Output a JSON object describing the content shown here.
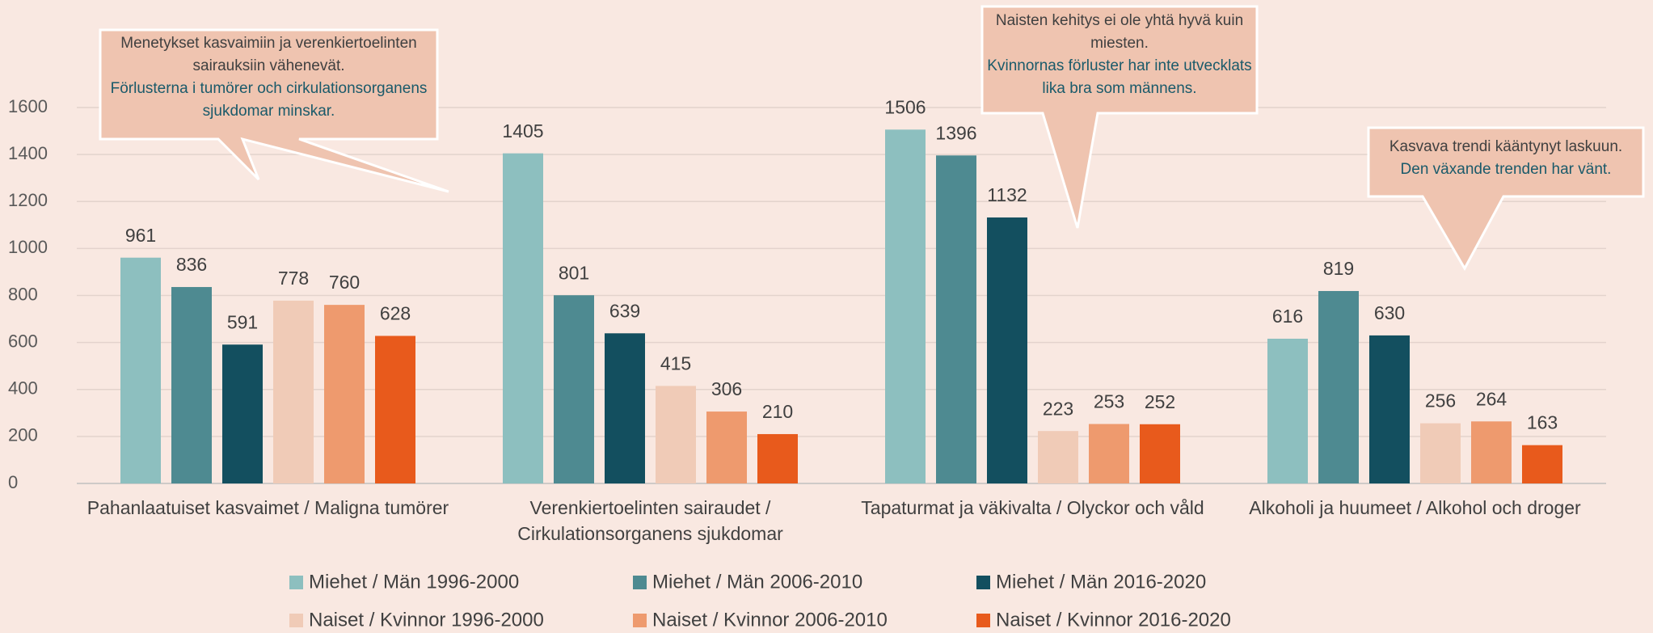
{
  "chart_data": {
    "type": "bar",
    "categories": [
      "Pahanlaatuiset kasvaimet / Maligna tumörer",
      "Verenkiertoelinten sairaudet / Cirkulationsorganens sjukdomar",
      "Tapaturmat ja väkivalta / Olyckor och våld",
      "Alkoholi ja huumeet / Alkohol och droger"
    ],
    "series": [
      {
        "name": "Miehet / Män 1996-2000",
        "color": "#8dbfbf",
        "values": [
          961,
          1405,
          1506,
          616
        ]
      },
      {
        "name": "Miehet / Män 2006-2010",
        "color": "#4e8a91",
        "values": [
          836,
          801,
          1396,
          819
        ]
      },
      {
        "name": "Miehet / Män 2016-2020",
        "color": "#134f5f",
        "values": [
          591,
          639,
          1132,
          630
        ]
      },
      {
        "name": "Naiset / Kvinnor 1996-2000",
        "color": "#f0cbb7",
        "values": [
          778,
          415,
          223,
          256
        ]
      },
      {
        "name": "Naiset / Kvinnor 2006-2010",
        "color": "#ee9a6e",
        "values": [
          760,
          306,
          253,
          264
        ]
      },
      {
        "name": "Naiset / Kvinnor 2016-2020",
        "color": "#e85a1c",
        "values": [
          628,
          210,
          252,
          163
        ]
      }
    ],
    "ylim": [
      0,
      1600
    ],
    "yticks": [
      0,
      200,
      400,
      600,
      800,
      1000,
      1200,
      1400,
      1600
    ],
    "grid": true,
    "annotations": [
      {
        "fi": "Menetykset kasvaimiin ja verenkiertoelinten sairauksiin vähenevät.",
        "sv": "Förlusterna i tumörer och cirkulationsorganens sjukdomar minskar."
      },
      {
        "fi": "Naisten kehitys ei ole yhtä hyvä kuin miesten.",
        "sv": "Kvinnornas förluster har inte utvecklats lika bra som männens."
      },
      {
        "fi": "Kasvava trendi kääntynyt laskuun.",
        "sv": "Den växande trenden har vänt."
      }
    ]
  }
}
